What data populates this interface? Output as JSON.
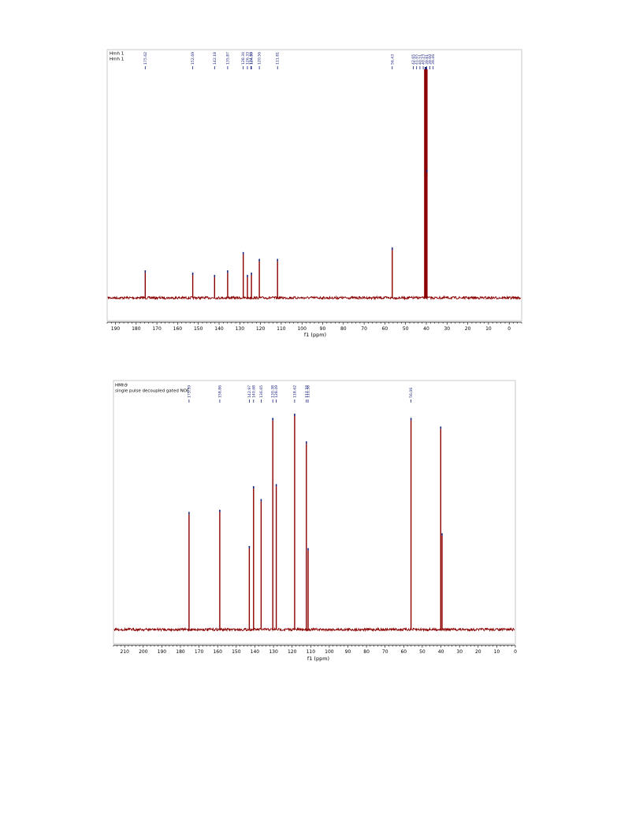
{
  "colors": {
    "spectrum": "#8b0000",
    "peak_label": "#1a237e",
    "axis": "#000000",
    "frame": "#bdbdbd"
  },
  "chart_data": [
    {
      "type": "line",
      "title": "Hmh 1",
      "subtitle": "Hmh 1",
      "xlabel": "f1 (ppm)",
      "xlim": [
        194,
        -6
      ],
      "x_reversed": true,
      "x_ticks": [
        190,
        180,
        170,
        160,
        150,
        140,
        130,
        120,
        110,
        100,
        90,
        80,
        70,
        60,
        50,
        40,
        30,
        20,
        10,
        0
      ],
      "ylim": [
        -0.05,
        1.0
      ],
      "grid": false,
      "peaks": [
        {
          "ppm": 175.62,
          "height": 0.11
        },
        {
          "ppm": 152.69,
          "height": 0.1
        },
        {
          "ppm": 142.18,
          "height": 0.09
        },
        {
          "ppm": 135.87,
          "height": 0.11
        },
        {
          "ppm": 128.34,
          "height": 0.19
        },
        {
          "ppm": 126.33,
          "height": 0.09
        },
        {
          "ppm": 124.39,
          "height": 0.1
        },
        {
          "ppm": 120.56,
          "height": 0.16
        },
        {
          "ppm": 111.81,
          "height": 0.16
        },
        {
          "ppm": 56.43,
          "height": 0.21
        },
        {
          "ppm": 40.51,
          "height": 1.0
        },
        {
          "ppm": 40.23,
          "height": 1.0
        },
        {
          "ppm": 39.96,
          "height": 1.0
        },
        {
          "ppm": 39.72,
          "height": 0.55
        }
      ],
      "peak_labels": [
        "175.62",
        "152.69",
        "142.18",
        "135.87",
        "128.34",
        "126.33",
        "124.39",
        "124.64",
        "120.56",
        "111.81",
        "56.43",
        "42.65",
        "41.65",
        "40.51",
        "40.23",
        "39.81",
        "39.60",
        "39.46"
      ]
    },
    {
      "type": "line",
      "title": "HMh9",
      "subtitle": "single pulse decoupled gated NOE",
      "xlabel": "f1 (ppm)",
      "xlim": [
        216,
        0
      ],
      "x_reversed": true,
      "x_ticks": [
        210,
        200,
        190,
        180,
        170,
        160,
        150,
        140,
        130,
        120,
        110,
        100,
        90,
        80,
        70,
        60,
        50,
        40,
        30,
        20,
        10,
        0
      ],
      "ylim": [
        -0.02,
        1.0
      ],
      "grid": false,
      "peaks": [
        {
          "ppm": 175.39,
          "height": 0.54
        },
        {
          "ppm": 158.86,
          "height": 0.55
        },
        {
          "ppm": 142.97,
          "height": 0.38
        },
        {
          "ppm": 140.68,
          "height": 0.66
        },
        {
          "ppm": 136.65,
          "height": 0.6
        },
        {
          "ppm": 130.38,
          "height": 0.98
        },
        {
          "ppm": 128.49,
          "height": 0.67
        },
        {
          "ppm": 118.62,
          "height": 1.0
        },
        {
          "ppm": 112.33,
          "height": 0.87
        },
        {
          "ppm": 111.38,
          "height": 0.37
        },
        {
          "ppm": 56.06,
          "height": 0.98
        },
        {
          "ppm": 40.1,
          "height": 0.94
        },
        {
          "ppm": 39.4,
          "height": 0.44
        }
      ],
      "peak_labels": [
        "175.39",
        "158.86",
        "142.97",
        "140.68",
        "136.65",
        "130.38",
        "128.49",
        "118.62",
        "112.33",
        "111.38",
        "56.06"
      ]
    }
  ]
}
